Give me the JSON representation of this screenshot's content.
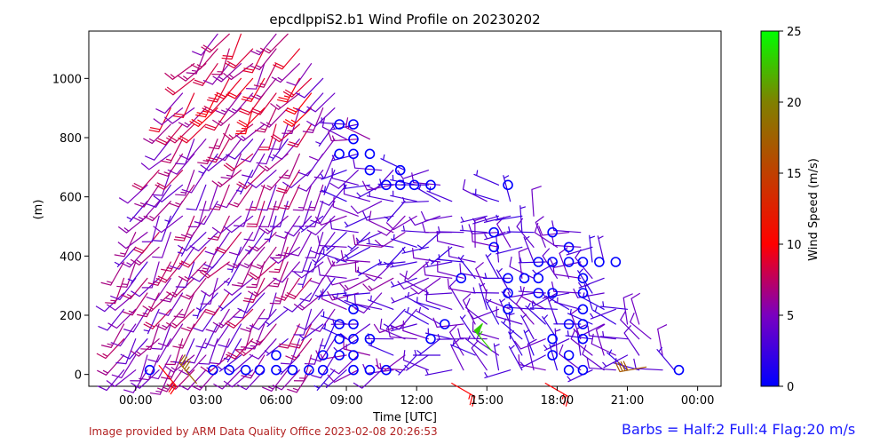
{
  "credit": "Image provided by ARM Data Quality Office 2023-02-08 20:26:53",
  "barb_note": "Barbs = Half:2 Full:4 Flag:20 m/s",
  "chart_data": {
    "type": "wind_barb",
    "title": "epcdlppiS2.b1 Wind Profile on 20230202",
    "xlabel": "Time [UTC]",
    "ylabel": "(m)",
    "xlim": [
      -2,
      25
    ],
    "ylim": [
      -40,
      1160
    ],
    "xtick_values": [
      0,
      3,
      6,
      9,
      12,
      15,
      18,
      21,
      24
    ],
    "xtick_labels": [
      "00:00",
      "03:00",
      "06:00",
      "09:00",
      "12:00",
      "15:00",
      "18:00",
      "21:00",
      "00:00"
    ],
    "yticks": [
      0,
      200,
      400,
      600,
      800,
      1000
    ],
    "colorbar": {
      "label": "Wind Speed (m/s)",
      "min": 0,
      "max": 25,
      "ticks": [
        0,
        5,
        10,
        15,
        20,
        25
      ],
      "colormap": [
        "#0000ff",
        "#9900b0",
        "#ff0000",
        "#808000",
        "#00ff00"
      ]
    },
    "barb_heights": [
      15,
      65,
      120,
      170,
      220,
      275,
      325,
      380,
      430,
      480,
      535,
      585,
      640,
      690,
      745,
      795,
      845,
      900,
      950,
      1000,
      1050,
      1100,
      1150
    ],
    "columns": [
      {
        "t": -0.5,
        "top": 380
      },
      {
        "t": 0,
        "top": 480
      },
      {
        "t": 0.5,
        "top": 640
      },
      {
        "t": 1.0,
        "top": 740
      },
      {
        "t": 1.5,
        "top": 900
      },
      {
        "t": 2.0,
        "top": 950
      },
      {
        "t": 2.5,
        "top": 1050
      },
      {
        "t": 3.0,
        "top": 1150
      },
      {
        "t": 3.5,
        "top": 1150
      },
      {
        "t": 4.0,
        "top": 1150
      },
      {
        "t": 4.5,
        "top": 1150
      },
      {
        "t": 5.0,
        "top": 1100
      },
      {
        "t": 5.5,
        "top": 1100
      },
      {
        "t": 6.0,
        "top": 1150
      },
      {
        "t": 6.5,
        "top": 1150
      },
      {
        "t": 7.0,
        "top": 1100
      },
      {
        "t": 7.5,
        "top": 1050
      },
      {
        "t": 8.0,
        "top": 1000
      },
      {
        "t": 8.5,
        "top": 950
      },
      {
        "t": 9.0,
        "top": 900
      },
      {
        "t": 9.5,
        "top": 850
      },
      {
        "t": 10.0,
        "top": 795
      },
      {
        "t": 10.5,
        "top": 745
      },
      {
        "t": 11.0,
        "top": 690
      },
      {
        "t": 11.5,
        "top": 690
      },
      {
        "t": 12.0,
        "top": 640
      },
      {
        "t": 12.5,
        "top": 690
      },
      {
        "t": 13.0,
        "top": 640
      },
      {
        "t": 13.5,
        "top": 585
      },
      {
        "t": 14.0,
        "top": 480
      },
      {
        "t": 14.5,
        "top": 430
      },
      {
        "t": 15.0,
        "top": 585
      },
      {
        "t": 15.5,
        "top": 640
      },
      {
        "t": 16.0,
        "top": 585
      },
      {
        "t": 16.5,
        "top": 535
      },
      {
        "t": 17.0,
        "top": 535
      },
      {
        "t": 17.5,
        "top": 480
      },
      {
        "t": 18.0,
        "top": 480
      },
      {
        "t": 18.5,
        "top": 480
      },
      {
        "t": 19.0,
        "top": 480
      },
      {
        "t": 19.5,
        "top": 430
      },
      {
        "t": 20.0,
        "top": 380
      },
      {
        "t": 20.5,
        "top": 270
      },
      {
        "t": 21.0,
        "top": 220
      },
      {
        "t": 21.5,
        "top": 170
      },
      {
        "t": 22.0,
        "top": 120
      },
      {
        "t": 22.5,
        "top": 65
      },
      {
        "t": 23.0,
        "top": 15
      }
    ],
    "calm_points": [
      {
        "t": 0.6,
        "h": 15
      },
      {
        "t": 3.3,
        "h": 15
      },
      {
        "t": 4.0,
        "h": 15
      },
      {
        "t": 4.7,
        "h": 15
      },
      {
        "t": 5.3,
        "h": 15
      },
      {
        "t": 6.0,
        "h": 15
      },
      {
        "t": 6.0,
        "h": 65
      },
      {
        "t": 6.7,
        "h": 15
      },
      {
        "t": 7.4,
        "h": 15
      },
      {
        "t": 8.0,
        "h": 15
      },
      {
        "t": 8.0,
        "h": 65
      },
      {
        "t": 8.7,
        "h": 65
      },
      {
        "t": 8.7,
        "h": 120
      },
      {
        "t": 8.7,
        "h": 170
      },
      {
        "t": 9.3,
        "h": 15
      },
      {
        "t": 9.3,
        "h": 65
      },
      {
        "t": 9.3,
        "h": 120
      },
      {
        "t": 9.3,
        "h": 170
      },
      {
        "t": 9.3,
        "h": 220
      },
      {
        "t": 10.0,
        "h": 15
      },
      {
        "t": 10.0,
        "h": 120
      },
      {
        "t": 10.7,
        "h": 15
      },
      {
        "t": 8.7,
        "h": 845
      },
      {
        "t": 9.3,
        "h": 845
      },
      {
        "t": 9.3,
        "h": 795
      },
      {
        "t": 8.7,
        "h": 745
      },
      {
        "t": 9.3,
        "h": 745
      },
      {
        "t": 10.0,
        "h": 745
      },
      {
        "t": 10.0,
        "h": 690
      },
      {
        "t": 10.7,
        "h": 640
      },
      {
        "t": 11.3,
        "h": 640
      },
      {
        "t": 11.3,
        "h": 690
      },
      {
        "t": 11.9,
        "h": 640
      },
      {
        "t": 12.6,
        "h": 640
      },
      {
        "t": 12.6,
        "h": 120
      },
      {
        "t": 13.2,
        "h": 170
      },
      {
        "t": 13.9,
        "h": 325
      },
      {
        "t": 15.3,
        "h": 480
      },
      {
        "t": 15.3,
        "h": 430
      },
      {
        "t": 15.9,
        "h": 640
      },
      {
        "t": 15.9,
        "h": 325
      },
      {
        "t": 15.9,
        "h": 275
      },
      {
        "t": 15.9,
        "h": 220
      },
      {
        "t": 16.6,
        "h": 325
      },
      {
        "t": 17.2,
        "h": 380
      },
      {
        "t": 17.2,
        "h": 325
      },
      {
        "t": 17.2,
        "h": 275
      },
      {
        "t": 17.8,
        "h": 480
      },
      {
        "t": 17.8,
        "h": 380
      },
      {
        "t": 17.8,
        "h": 275
      },
      {
        "t": 17.8,
        "h": 120
      },
      {
        "t": 17.8,
        "h": 65
      },
      {
        "t": 18.5,
        "h": 430
      },
      {
        "t": 18.5,
        "h": 380
      },
      {
        "t": 18.5,
        "h": 170
      },
      {
        "t": 18.5,
        "h": 65
      },
      {
        "t": 18.5,
        "h": 15
      },
      {
        "t": 19.1,
        "h": 380
      },
      {
        "t": 19.1,
        "h": 325
      },
      {
        "t": 19.1,
        "h": 275
      },
      {
        "t": 19.1,
        "h": 220
      },
      {
        "t": 19.1,
        "h": 170
      },
      {
        "t": 19.1,
        "h": 120
      },
      {
        "t": 19.1,
        "h": 15
      },
      {
        "t": 19.8,
        "h": 380
      },
      {
        "t": 20.5,
        "h": 380
      },
      {
        "t": 23.2,
        "h": 15
      }
    ],
    "strong_barbs": [
      {
        "t": 1.0,
        "h": 30,
        "speed": 10,
        "dir": 140
      },
      {
        "t": 2.6,
        "h": -30,
        "speed": 18,
        "dir": 320
      },
      {
        "t": 13.5,
        "h": -30,
        "speed": 10,
        "dir": 120
      },
      {
        "t": 15.2,
        "h": 80,
        "speed": 23,
        "dir": 320
      },
      {
        "t": 17.5,
        "h": -30,
        "speed": 10,
        "dir": 120
      },
      {
        "t": 21.8,
        "h": 25,
        "speed": 17,
        "dir": 260
      }
    ]
  }
}
